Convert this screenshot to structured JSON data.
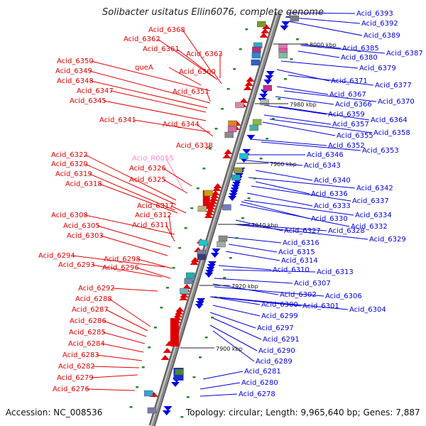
{
  "title": "Solibacter usitatus Ellin6076, complete genome",
  "accession_text": "Accession: NC_008536",
  "topology_text": "Topology: circular; Length: 9,965,640 bp; Genes: 7,887",
  "colors": {
    "forward_strand": "#e00000",
    "reverse_strand": "#0000dd",
    "rna_label": "#ff88cc",
    "backbone": "#8a8a8a"
  },
  "kbp_ticks": [
    "8000 kbp",
    "7980 kbp",
    "7960 kbp",
    "7940 kbp",
    "7920 kbp",
    "7900 kbp"
  ],
  "left_labels": [
    {
      "text": "Acid_6368",
      "rna": false
    },
    {
      "text": "Acid_6362",
      "rna": false
    },
    {
      "text": "Acid_6361",
      "rna": false
    },
    {
      "text": "Acid_6363",
      "rna": false
    },
    {
      "text": "Acid_6350",
      "rna": false
    },
    {
      "text": "queA",
      "rna": false
    },
    {
      "text": "Acid_6360",
      "rna": false
    },
    {
      "text": "Acid_6349",
      "rna": false
    },
    {
      "text": "Acid_6348",
      "rna": false
    },
    {
      "text": "Acid_6347",
      "rna": false
    },
    {
      "text": "Acid_6351",
      "rna": false
    },
    {
      "text": "Acid_6345",
      "rna": false
    },
    {
      "text": "Acid_6341",
      "rna": false
    },
    {
      "text": "Acid_6344",
      "rna": false
    },
    {
      "text": "Acid_6338",
      "rna": false
    },
    {
      "text": "Acid_6322",
      "rna": false
    },
    {
      "text": "Acid_R0055",
      "rna": true
    },
    {
      "text": "Acid_6320",
      "rna": false
    },
    {
      "text": "Acid_6326",
      "rna": false
    },
    {
      "text": "Acid_6319",
      "rna": false
    },
    {
      "text": "Acid_6325",
      "rna": false
    },
    {
      "text": "Acid_6318",
      "rna": false
    },
    {
      "text": "Acid_6317",
      "rna": false
    },
    {
      "text": "Acid_6308",
      "rna": false
    },
    {
      "text": "Acid_6312",
      "rna": false
    },
    {
      "text": "Acid_6305",
      "rna": false
    },
    {
      "text": "Acid_6311",
      "rna": false
    },
    {
      "text": "Acid_6303",
      "rna": false
    },
    {
      "text": "Acid_6294",
      "rna": false
    },
    {
      "text": "Acid_6298",
      "rna": false
    },
    {
      "text": "Acid_6293",
      "rna": false
    },
    {
      "text": "Acid_6296",
      "rna": false
    },
    {
      "text": "Acid_6292",
      "rna": false
    },
    {
      "text": "Acid_6288",
      "rna": false
    },
    {
      "text": "Acid_6287",
      "rna": false
    },
    {
      "text": "Acid_6286",
      "rna": false
    },
    {
      "text": "Acid_6285",
      "rna": false
    },
    {
      "text": "Acid_6284",
      "rna": false
    },
    {
      "text": "Acid_6283",
      "rna": false
    },
    {
      "text": "Acid_6282",
      "rna": false
    },
    {
      "text": "Acid_6279",
      "rna": false
    },
    {
      "text": "Acid_6276",
      "rna": false
    }
  ],
  "right_labels": [
    "Acid_6393",
    "Acid_6392",
    "Acid_6389",
    "Acid_6385",
    "Acid_6387",
    "Acid_6380",
    "Acid_6379",
    "Acid_6371",
    "Acid_6377",
    "Acid_6367",
    "Acid_6370",
    "Acid_6366",
    "Acid_6359",
    "Acid_6364",
    "Acid_6357",
    "Acid_6358",
    "Acid_6355",
    "Acid_6352",
    "Acid_6353",
    "Acid_6346",
    "Acid_6343",
    "Acid_6340",
    "Acid_6342",
    "Acid_6336",
    "Acid_6337",
    "Acid_6333",
    "Acid_6334",
    "Acid_6330",
    "Acid_6332",
    "Acid_6327",
    "Acid_6328",
    "Acid_6329",
    "Acid_6316",
    "Acid_6315",
    "Acid_6314",
    "Acid_6310",
    "Acid_6313",
    "Acid_6307",
    "Acid_6302",
    "Acid_6306",
    "Acid_6300",
    "Acid_6301",
    "Acid_6304",
    "Acid_6299",
    "Acid_6297",
    "Acid_6291",
    "Acid_6290",
    "Acid_6289",
    "Acid_6281",
    "Acid_6280",
    "Acid_6278"
  ]
}
